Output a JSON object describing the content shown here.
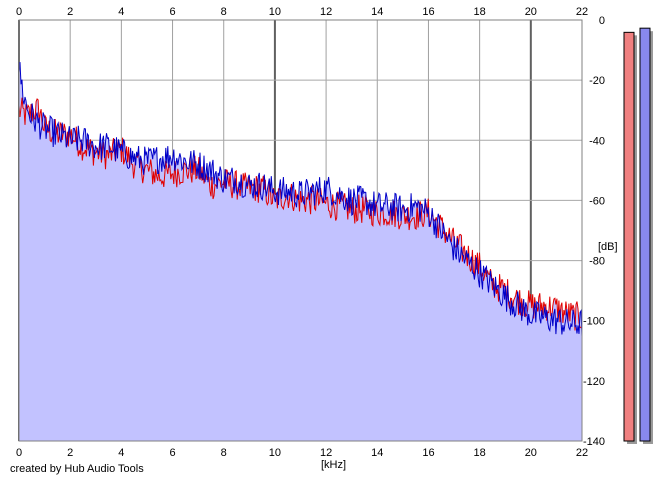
{
  "chart_data": {
    "type": "area",
    "xlabel": "[kHz]",
    "ylabel": "[dB]",
    "xlim": [
      0,
      22
    ],
    "ylim": [
      -140,
      0
    ],
    "x_ticks": [
      0,
      2,
      4,
      6,
      8,
      10,
      12,
      14,
      16,
      18,
      20,
      22
    ],
    "y_ticks": [
      0,
      -20,
      -40,
      -60,
      -80,
      -100,
      -120,
      -140
    ],
    "grid": true,
    "series": [
      {
        "color": "#e00000",
        "x": [
          0,
          0.3,
          0.6,
          0.8,
          1,
          1.5,
          2,
          2.5,
          3,
          3.5,
          4,
          4.5,
          5,
          5.5,
          6,
          6.5,
          7,
          7.5,
          8,
          8.5,
          9,
          9.5,
          10,
          10.5,
          11,
          11.5,
          12,
          12.5,
          13,
          13.5,
          14,
          14.5,
          15,
          15.5,
          16,
          16.5,
          17,
          17.5,
          18,
          18.5,
          19,
          19.5,
          20,
          20.5,
          21,
          21.5,
          22
        ],
        "values": [
          -30,
          -32,
          -30,
          -30,
          -36,
          -38,
          -38,
          -42,
          -44,
          -45,
          -43,
          -48,
          -50,
          -52,
          -51,
          -50,
          -50,
          -55,
          -54,
          -55,
          -56,
          -56,
          -60,
          -58,
          -60,
          -60,
          -61,
          -62,
          -63,
          -63,
          -64,
          -64,
          -65,
          -65,
          -64,
          -69,
          -74,
          -78,
          -82,
          -88,
          -90,
          -93,
          -95,
          -95,
          -96,
          -98,
          -99
        ]
      },
      {
        "color": "#0000c8",
        "x": [
          0,
          0.2,
          0.4,
          0.7,
          1,
          1.5,
          2,
          2.5,
          3,
          3.5,
          4,
          4.5,
          5,
          5.5,
          6,
          6.5,
          7,
          7.5,
          8,
          8.5,
          9,
          9.5,
          10,
          10.5,
          11,
          11.5,
          12,
          12.5,
          13,
          13.5,
          14,
          14.5,
          15,
          15.5,
          16,
          16.5,
          17,
          17.5,
          18,
          18.5,
          19,
          19.5,
          20,
          20.5,
          21,
          21.5,
          22
        ],
        "values": [
          -16,
          -26,
          -31,
          -34,
          -36,
          -38,
          -40,
          -40,
          -42,
          -42,
          -44,
          -46,
          -47,
          -46,
          -45,
          -47,
          -48,
          -50,
          -53,
          -53,
          -55,
          -55,
          -57,
          -57,
          -58,
          -57,
          -56,
          -58,
          -60,
          -60,
          -62,
          -62,
          -63,
          -62,
          -64,
          -70,
          -76,
          -80,
          -84,
          -88,
          -92,
          -95,
          -98,
          -99,
          -100,
          -101,
          -101
        ]
      }
    ],
    "fill_color": "#c2c2ff",
    "meters": [
      {
        "color": "#f08080",
        "level": 0.98
      },
      {
        "color": "#8888ee",
        "level": 0.99
      }
    ]
  },
  "footer": {
    "credit": "created by Hub Audio Tools"
  }
}
